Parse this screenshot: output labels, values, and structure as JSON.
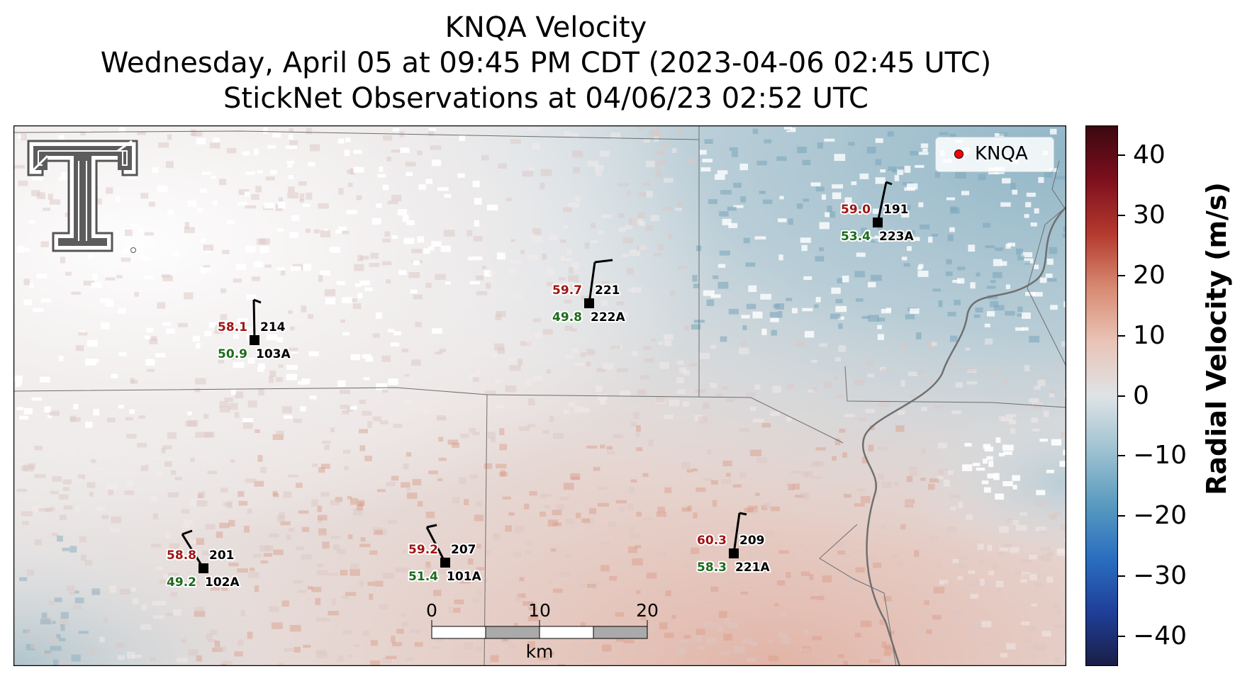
{
  "title": {
    "line1": "KNQA Velocity",
    "line2": "Wednesday, April 05 at 09:45 PM CDT (2023-04-06 02:45 UTC)",
    "line3": "StickNet Observations at 04/06/23 02:52 UTC"
  },
  "legend": {
    "label": "KNQA",
    "marker_color": "#ff0000"
  },
  "colorbar": {
    "label": "Radial Velocity (m/s)",
    "ticks": [
      "40",
      "30",
      "20",
      "10",
      "0",
      "−10",
      "−20",
      "−30",
      "−40"
    ],
    "range": [
      -45,
      45
    ],
    "colors": [
      "#1a1e45",
      "#1f3f9a",
      "#2a6fc0",
      "#5a9bc0",
      "#9fc2d0",
      "#dfe3e6",
      "#e9c4b6",
      "#d88a72",
      "#b43a2e",
      "#7d0f1d",
      "#3b0810"
    ]
  },
  "scalebar": {
    "ticks": [
      "0",
      "10",
      "20"
    ],
    "unit": "km"
  },
  "logo": {
    "icon": "texas-tech-double-t-logo"
  },
  "stations": [
    {
      "id": "103A",
      "temp": "58.1",
      "dew": "50.9",
      "dir": "214"
    },
    {
      "id": "222A",
      "temp": "59.7",
      "dew": "49.8",
      "dir": "221"
    },
    {
      "id": "223A",
      "temp": "59.0",
      "dew": "53.4",
      "dir": "191"
    },
    {
      "id": "102A",
      "temp": "58.8",
      "dew": "49.2",
      "dir": "201"
    },
    {
      "id": "101A",
      "temp": "59.2",
      "dew": "51.4",
      "dir": "207"
    },
    {
      "id": "221A",
      "temp": "60.3",
      "dew": "58.3",
      "dir": "209"
    }
  ]
}
